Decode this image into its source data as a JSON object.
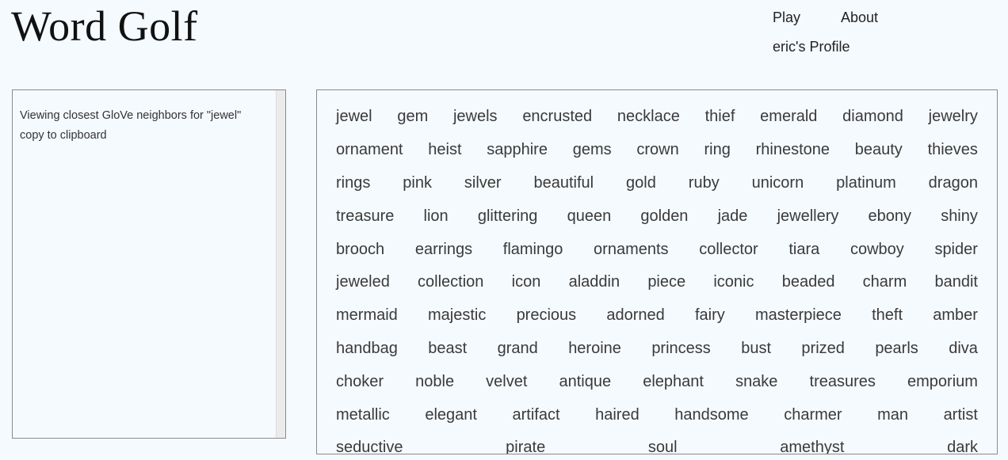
{
  "header": {
    "title": "Word Golf",
    "nav": {
      "play": "Play",
      "about": "About",
      "profile": "eric's Profile"
    }
  },
  "info_panel": {
    "viewing_text": "Viewing closest GloVe neighbors for \"jewel\"",
    "copy_text": "copy to clipboard"
  },
  "neighbors": [
    [
      "jewel",
      "gem",
      "jewels",
      "encrusted",
      "necklace",
      "thief",
      "emerald",
      "diamond",
      "jewelry"
    ],
    [
      "ornament",
      "heist",
      "sapphire",
      "gems",
      "crown",
      "ring",
      "rhinestone",
      "beauty",
      "thieves"
    ],
    [
      "rings",
      "pink",
      "silver",
      "beautiful",
      "gold",
      "ruby",
      "unicorn",
      "platinum",
      "dragon"
    ],
    [
      "treasure",
      "lion",
      "glittering",
      "queen",
      "golden",
      "jade",
      "jewellery",
      "ebony",
      "shiny"
    ],
    [
      "brooch",
      "earrings",
      "flamingo",
      "ornaments",
      "collector",
      "tiara",
      "cowboy",
      "spider"
    ],
    [
      "jeweled",
      "collection",
      "icon",
      "aladdin",
      "piece",
      "iconic",
      "beaded",
      "charm",
      "bandit"
    ],
    [
      "mermaid",
      "majestic",
      "precious",
      "adorned",
      "fairy",
      "masterpiece",
      "theft",
      "amber"
    ],
    [
      "handbag",
      "beast",
      "grand",
      "heroine",
      "princess",
      "bust",
      "prized",
      "pearls",
      "diva"
    ],
    [
      "choker",
      "noble",
      "velvet",
      "antique",
      "elephant",
      "snake",
      "treasures",
      "emporium"
    ],
    [
      "metallic",
      "elegant",
      "artifact",
      "haired",
      "handsome",
      "charmer",
      "man",
      "artist"
    ],
    [
      "seductive",
      "pirate",
      "soul",
      "amethyst",
      "dark"
    ]
  ]
}
